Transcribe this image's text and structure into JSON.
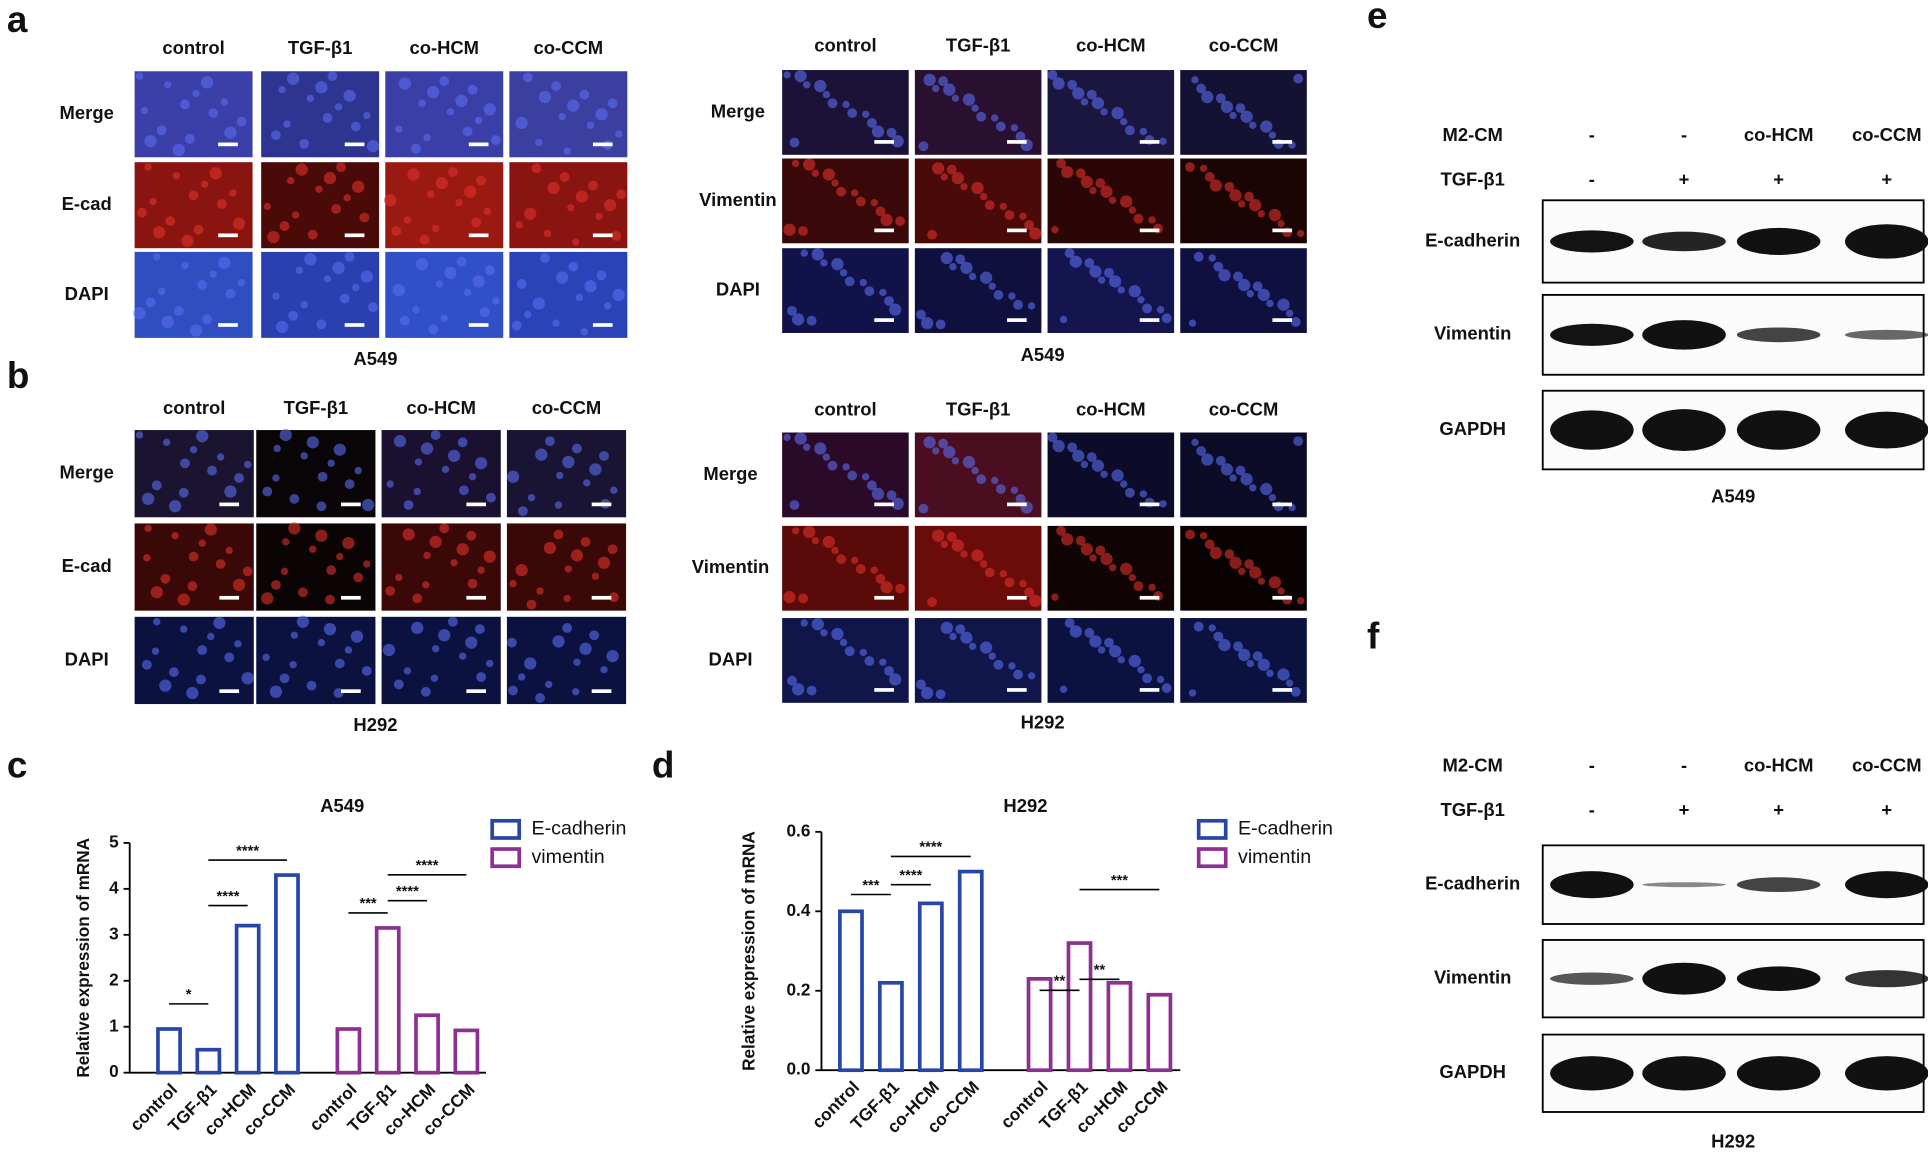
{
  "panels": {
    "a": {
      "letter": "a",
      "left": {
        "columns": [
          "control",
          "TGF-β1",
          "co-HCM",
          "co-CCM"
        ],
        "rows": [
          "Merge",
          "E-cad",
          "DAPI"
        ],
        "cell_line": "A549"
      },
      "right": {
        "columns": [
          "control",
          "TGF-β1",
          "co-HCM",
          "co-CCM"
        ],
        "rows": [
          "Merge",
          "Vimentin",
          "DAPI"
        ],
        "cell_line": "A549"
      }
    },
    "b": {
      "letter": "b",
      "left": {
        "columns": [
          "control",
          "TGF-β1",
          "co-HCM",
          "co-CCM"
        ],
        "rows": [
          "Merge",
          "E-cad",
          "DAPI"
        ],
        "cell_line": "H292"
      },
      "right": {
        "columns": [
          "control",
          "TGF-β1",
          "co-HCM",
          "co-CCM"
        ],
        "rows": [
          "Merge",
          "Vimentin",
          "DAPI"
        ],
        "cell_line": "H292"
      }
    },
    "c": {
      "letter": "c"
    },
    "d": {
      "letter": "d"
    },
    "e": {
      "letter": "e",
      "conditions": [
        {
          "label": "M2-CM",
          "values": [
            "-",
            "-",
            "co-HCM",
            "co-CCM"
          ]
        },
        {
          "label": "TGF-β1",
          "values": [
            "-",
            "+",
            "+",
            "+"
          ]
        }
      ],
      "blots": [
        "E-cadherin",
        "Vimentin",
        "GAPDH"
      ],
      "cell_line": "A549"
    },
    "f": {
      "letter": "f",
      "conditions": [
        {
          "label": "M2-CM",
          "values": [
            "-",
            "-",
            "co-HCM",
            "co-CCM"
          ]
        },
        {
          "label": "TGF-β1",
          "values": [
            "-",
            "+",
            "+",
            "+"
          ]
        }
      ],
      "blots": [
        "E-cadherin",
        "Vimentin",
        "GAPDH"
      ],
      "cell_line": "H292"
    }
  },
  "chart_data": [
    {
      "type": "bar",
      "title": "A549",
      "y_label": "Relative expression of mRNA",
      "categories": [
        "control",
        "TGF-β1",
        "co-HCM",
        "co-CCM",
        "control",
        "TGF-β1",
        "co-HCM",
        "co-CCM"
      ],
      "series": [
        {
          "name": "E-cadherin",
          "color": "#2846a8",
          "values": [
            0.95,
            0.5,
            3.2,
            4.3,
            null,
            null,
            null,
            null
          ]
        },
        {
          "name": "vimentin",
          "color": "#8e2f92",
          "values": [
            null,
            null,
            null,
            null,
            0.95,
            3.15,
            1.25,
            0.92
          ]
        }
      ],
      "ylim": [
        0,
        5
      ],
      "yticks": [
        0,
        1,
        2,
        3,
        4,
        5
      ],
      "annotations": [
        "*",
        "****",
        "****",
        "***",
        "****",
        "****"
      ]
    },
    {
      "type": "bar",
      "title": "H292",
      "y_label": "Relative expression of mRNA",
      "categories": [
        "control",
        "TGF-β1",
        "co-HCM",
        "co-CCM",
        "control",
        "TGF-β1",
        "co-HCM",
        "co-CCM"
      ],
      "series": [
        {
          "name": "E-cadherin",
          "color": "#2846a8",
          "values": [
            0.4,
            0.22,
            0.42,
            0.5,
            null,
            null,
            null,
            null
          ]
        },
        {
          "name": "vimentin",
          "color": "#8e2f92",
          "values": [
            null,
            null,
            null,
            null,
            0.23,
            0.32,
            0.22,
            0.19
          ]
        }
      ],
      "ylim": [
        0,
        0.6
      ],
      "yticks": [
        {
          "value": 0,
          "label": "0.0"
        },
        0.2,
        0.4,
        0.6
      ],
      "annotations": [
        "***",
        "****",
        "****",
        "**",
        "**",
        "***"
      ]
    }
  ]
}
